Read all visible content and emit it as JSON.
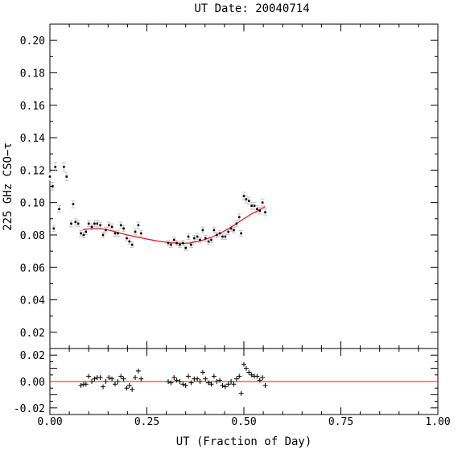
{
  "chart_data": {
    "type": "scatter",
    "title": "UT Date: 20040714",
    "xlabel": "UT (Fraction of Day)",
    "ylabel": "225 GHz CSO−τ",
    "xlim": [
      0,
      1.0
    ],
    "x_ticks": [
      "0.00",
      "0.25",
      "0.50",
      "0.75",
      "1.00"
    ],
    "colors": {
      "fit": "#e0141e",
      "points": "#000000",
      "errorbars": "#c8c8c8"
    },
    "top_panel": {
      "ylim": [
        0.01,
        0.21
      ],
      "y_ticks": [
        "0.02",
        "0.04",
        "0.06",
        "0.08",
        "0.10",
        "0.12",
        "0.14",
        "0.16",
        "0.18",
        "0.20"
      ],
      "points": [
        [
          0.0,
          0.116
        ],
        [
          0.007,
          0.11
        ],
        [
          0.01,
          0.084
        ],
        [
          0.014,
          0.122
        ],
        [
          0.024,
          0.096
        ],
        [
          0.036,
          0.122
        ],
        [
          0.043,
          0.116
        ],
        [
          0.055,
          0.087
        ],
        [
          0.06,
          0.099
        ],
        [
          0.066,
          0.088
        ],
        [
          0.073,
          0.087
        ],
        [
          0.08,
          0.081
        ],
        [
          0.087,
          0.08
        ],
        [
          0.093,
          0.082
        ],
        [
          0.1,
          0.087
        ],
        [
          0.108,
          0.085
        ],
        [
          0.115,
          0.087
        ],
        [
          0.122,
          0.087
        ],
        [
          0.13,
          0.086
        ],
        [
          0.137,
          0.08
        ],
        [
          0.144,
          0.083
        ],
        [
          0.152,
          0.086
        ],
        [
          0.16,
          0.085
        ],
        [
          0.168,
          0.081
        ],
        [
          0.175,
          0.081
        ],
        [
          0.183,
          0.086
        ],
        [
          0.19,
          0.084
        ],
        [
          0.198,
          0.078
        ],
        [
          0.205,
          0.076
        ],
        [
          0.212,
          0.074
        ],
        [
          0.22,
          0.082
        ],
        [
          0.228,
          0.086
        ],
        [
          0.235,
          0.081
        ],
        [
          0.305,
          0.075
        ],
        [
          0.312,
          0.074
        ],
        [
          0.32,
          0.077
        ],
        [
          0.327,
          0.075
        ],
        [
          0.335,
          0.074
        ],
        [
          0.343,
          0.075
        ],
        [
          0.35,
          0.072
        ],
        [
          0.357,
          0.079
        ],
        [
          0.364,
          0.074
        ],
        [
          0.372,
          0.078
        ],
        [
          0.38,
          0.079
        ],
        [
          0.387,
          0.077
        ],
        [
          0.394,
          0.083
        ],
        [
          0.401,
          0.078
        ],
        [
          0.409,
          0.076
        ],
        [
          0.416,
          0.077
        ],
        [
          0.423,
          0.083
        ],
        [
          0.43,
          0.08
        ],
        [
          0.438,
          0.081
        ],
        [
          0.445,
          0.079
        ],
        [
          0.452,
          0.079
        ],
        [
          0.46,
          0.082
        ],
        [
          0.467,
          0.084
        ],
        [
          0.474,
          0.083
        ],
        [
          0.481,
          0.087
        ],
        [
          0.488,
          0.091
        ],
        [
          0.493,
          0.081
        ],
        [
          0.5,
          0.104
        ],
        [
          0.506,
          0.102
        ],
        [
          0.513,
          0.101
        ],
        [
          0.52,
          0.098
        ],
        [
          0.527,
          0.098
        ],
        [
          0.534,
          0.096
        ],
        [
          0.541,
          0.095
        ],
        [
          0.548,
          0.1
        ],
        [
          0.555,
          0.094
        ]
      ],
      "fit_curve": [
        [
          0.085,
          0.0832
        ],
        [
          0.1,
          0.0838
        ],
        [
          0.12,
          0.084
        ],
        [
          0.14,
          0.0836
        ],
        [
          0.16,
          0.0825
        ],
        [
          0.18,
          0.0812
        ],
        [
          0.2,
          0.08
        ],
        [
          0.22,
          0.079
        ],
        [
          0.25,
          0.0775
        ],
        [
          0.28,
          0.0762
        ],
        [
          0.31,
          0.0752
        ],
        [
          0.34,
          0.0748
        ],
        [
          0.36,
          0.075
        ],
        [
          0.38,
          0.076
        ],
        [
          0.4,
          0.0772
        ],
        [
          0.42,
          0.079
        ],
        [
          0.44,
          0.0812
        ],
        [
          0.46,
          0.0838
        ],
        [
          0.48,
          0.0868
        ],
        [
          0.5,
          0.09
        ],
        [
          0.52,
          0.093
        ],
        [
          0.54,
          0.0955
        ],
        [
          0.555,
          0.0975
        ]
      ]
    },
    "bottom_panel": {
      "ylim": [
        -0.025,
        0.025
      ],
      "y_ticks": [
        "0.02",
        "0.00",
        "-0.02"
      ],
      "residuals": [
        [
          0.08,
          -0.003
        ],
        [
          0.087,
          -0.002
        ],
        [
          0.093,
          -0.002
        ],
        [
          0.1,
          0.004
        ],
        [
          0.108,
          0.0
        ],
        [
          0.115,
          0.002
        ],
        [
          0.122,
          0.003
        ],
        [
          0.13,
          0.003
        ],
        [
          0.137,
          -0.004
        ],
        [
          0.144,
          0.0
        ],
        [
          0.152,
          0.003
        ],
        [
          0.16,
          0.002
        ],
        [
          0.168,
          -0.002
        ],
        [
          0.175,
          0.0
        ],
        [
          0.183,
          0.004
        ],
        [
          0.19,
          0.002
        ],
        [
          0.198,
          -0.005
        ],
        [
          0.205,
          -0.003
        ],
        [
          0.212,
          -0.006
        ],
        [
          0.22,
          0.003
        ],
        [
          0.228,
          0.008
        ],
        [
          0.235,
          0.002
        ],
        [
          0.305,
          0.0
        ],
        [
          0.312,
          -0.001
        ],
        [
          0.32,
          0.003
        ],
        [
          0.327,
          0.001
        ],
        [
          0.335,
          0.0
        ],
        [
          0.343,
          -0.002
        ],
        [
          0.35,
          -0.003
        ],
        [
          0.357,
          0.004
        ],
        [
          0.364,
          -0.001
        ],
        [
          0.372,
          0.002
        ],
        [
          0.38,
          0.002
        ],
        [
          0.387,
          0.0
        ],
        [
          0.394,
          0.007
        ],
        [
          0.401,
          0.002
        ],
        [
          0.409,
          -0.001
        ],
        [
          0.416,
          -0.002
        ],
        [
          0.423,
          0.004
        ],
        [
          0.43,
          0.0
        ],
        [
          0.438,
          0.001
        ],
        [
          0.445,
          -0.003
        ],
        [
          0.452,
          -0.004
        ],
        [
          0.46,
          -0.002
        ],
        [
          0.467,
          0.0
        ],
        [
          0.474,
          -0.002
        ],
        [
          0.481,
          0.002
        ],
        [
          0.488,
          0.004
        ],
        [
          0.493,
          -0.009
        ],
        [
          0.5,
          0.013
        ],
        [
          0.506,
          0.01
        ],
        [
          0.513,
          0.007
        ],
        [
          0.52,
          0.005
        ],
        [
          0.527,
          0.004
        ],
        [
          0.534,
          0.004
        ],
        [
          0.541,
          0.001
        ],
        [
          0.548,
          0.003
        ],
        [
          0.555,
          -0.003
        ]
      ],
      "zero_line": 0.0
    }
  }
}
